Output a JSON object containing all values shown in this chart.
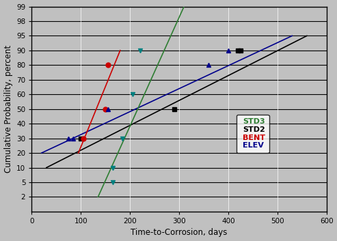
{
  "xlabel": "Time-to-Corrosion, days",
  "ylabel": "Cumulative Probability, percent",
  "bg_color": "#c0c0c0",
  "xlim": [
    0,
    600
  ],
  "ylim": [
    0,
    14
  ],
  "ytick_positions": [
    1,
    2,
    3,
    4,
    5,
    6,
    7,
    8,
    9,
    10,
    11,
    12,
    13,
    14
  ],
  "ytick_labels": [
    "2",
    "5",
    "10",
    "20",
    "30",
    "40",
    "50",
    "60",
    "70",
    "80",
    "90",
    "95",
    "98",
    "99"
  ],
  "xticks": [
    0,
    100,
    200,
    300,
    400,
    500,
    600
  ],
  "STD3": {
    "color": "#2e7d32",
    "points_x": [
      165,
      185,
      205,
      220,
      165
    ],
    "points_y": [
      3,
      5,
      8,
      11,
      2
    ],
    "line_x": [
      135,
      310
    ],
    "line_y": [
      1,
      14
    ],
    "marker": "v",
    "marker_color": "#008080"
  },
  "STD2": {
    "color": "#000000",
    "points_x": [
      100,
      290,
      420,
      425
    ],
    "points_y": [
      5,
      7,
      11,
      11
    ],
    "line_x": [
      30,
      560
    ],
    "line_y": [
      3,
      12
    ],
    "marker": "s"
  },
  "BENT": {
    "color": "#cc0000",
    "points_x": [
      105,
      150,
      155
    ],
    "points_y": [
      5,
      7,
      10
    ],
    "line_x": [
      95,
      180
    ],
    "line_y": [
      4,
      11
    ],
    "marker": "o"
  },
  "ELEV": {
    "color": "#00008b",
    "points_x": [
      75,
      85,
      155,
      360,
      400
    ],
    "points_y": [
      5,
      5,
      7,
      10,
      11
    ],
    "line_x": [
      20,
      530
    ],
    "line_y": [
      4,
      12
    ],
    "marker": "^"
  },
  "legend_labels": [
    "STD3",
    "STD2",
    "BENT",
    "ELEV"
  ],
  "legend_colors": [
    "#2e7d32",
    "#000000",
    "#cc0000",
    "#00008b"
  ],
  "legend_markers": [
    "v",
    "s",
    "o",
    "^"
  ],
  "legend_marker_colors": [
    "#008080",
    "#000000",
    "#cc0000",
    "#00008b"
  ]
}
